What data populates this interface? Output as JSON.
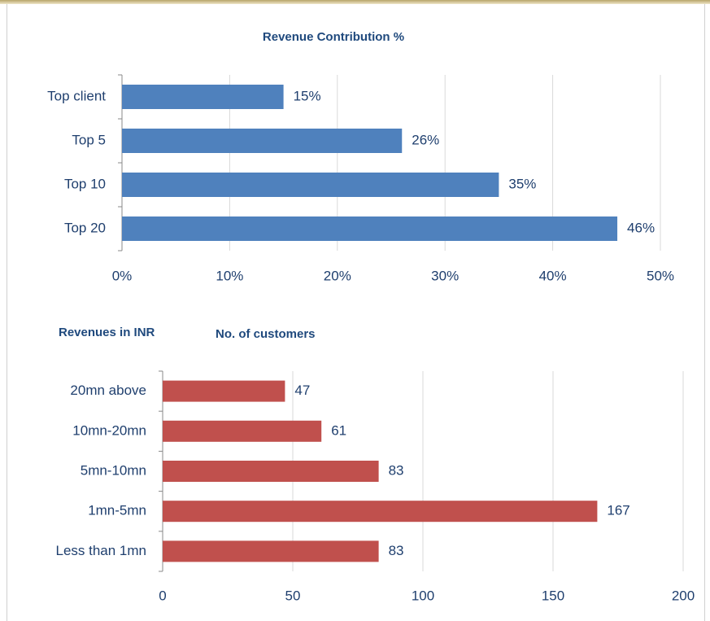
{
  "chart_data": [
    {
      "type": "bar",
      "orientation": "horizontal",
      "title": "Revenue Contribution %",
      "categories": [
        "Top client",
        "Top 5",
        "Top 10",
        "Top 20"
      ],
      "values": [
        15,
        26,
        35,
        46
      ],
      "value_labels": [
        "15%",
        "26%",
        "35%",
        "46%"
      ],
      "color": "#4f81bd",
      "xlim": [
        0,
        50
      ],
      "xticks": [
        {
          "value": 0,
          "label": "0%"
        },
        {
          "value": 10,
          "label": "10%"
        },
        {
          "value": 20,
          "label": "20%"
        },
        {
          "value": 30,
          "label": "30%"
        },
        {
          "value": 40,
          "label": "40%"
        },
        {
          "value": 50,
          "label": "50%"
        }
      ],
      "grid": true
    },
    {
      "type": "bar",
      "orientation": "horizontal",
      "title": "No. of customers",
      "y_label": "Revenues in INR",
      "categories": [
        "20mn above",
        "10mn-20mn",
        "5mn-10mn",
        "1mn-5mn",
        "Less than 1mn"
      ],
      "values": [
        47,
        61,
        83,
        167,
        83
      ],
      "color": "#c0504d",
      "xlim": [
        0,
        200
      ],
      "xticks": [
        0,
        50,
        100,
        150,
        200
      ],
      "grid": true
    }
  ]
}
